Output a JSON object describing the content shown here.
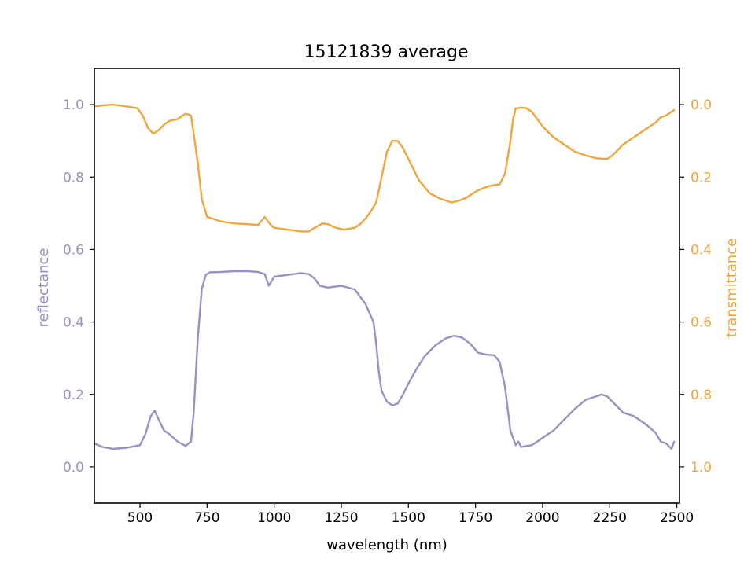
{
  "chart_data": {
    "type": "line",
    "title": "15121839 average",
    "xlabel": "wavelength (nm)",
    "ylabel_left": "reflectance",
    "ylabel_right": "transmittance",
    "xlim": [
      330,
      2510
    ],
    "ylim_left": [
      -0.1,
      1.1
    ],
    "ylim_right": [
      1.1,
      -0.1
    ],
    "right_axis_inverted": true,
    "grid": false,
    "x_ticks": [
      500,
      750,
      1000,
      1250,
      1500,
      1750,
      2000,
      2250,
      2500
    ],
    "x_tick_labels": [
      "500",
      "750",
      "1000",
      "1250",
      "1500",
      "1750",
      "2000",
      "2250",
      "2500"
    ],
    "y_left_ticks": [
      0.0,
      0.2,
      0.4,
      0.6,
      0.8,
      1.0
    ],
    "y_left_tick_labels": [
      "0.0",
      "0.2",
      "0.4",
      "0.6",
      "0.8",
      "1.0"
    ],
    "y_right_ticks": [
      0.0,
      0.2,
      0.4,
      0.6,
      0.8,
      1.0
    ],
    "y_right_tick_labels": [
      "0.0",
      "0.2",
      "0.4",
      "0.6",
      "0.8",
      "1.0"
    ],
    "colors": {
      "reflectance": "#9891c3",
      "transmittance": "#f0a53e"
    },
    "series": [
      {
        "axis": "left",
        "color": "#9891c3",
        "x": [
          330,
          360,
          400,
          450,
          500,
          520,
          540,
          555,
          570,
          590,
          610,
          640,
          670,
          690,
          700,
          715,
          730,
          745,
          760,
          800,
          850,
          900,
          940,
          965,
          980,
          1000,
          1050,
          1100,
          1130,
          1150,
          1170,
          1200,
          1250,
          1300,
          1340,
          1370,
          1380,
          1390,
          1400,
          1420,
          1440,
          1460,
          1480,
          1500,
          1530,
          1560,
          1600,
          1640,
          1670,
          1700,
          1730,
          1760,
          1790,
          1820,
          1840,
          1860,
          1870,
          1880,
          1890,
          1900,
          1910,
          1920,
          1940,
          1960,
          1980,
          2000,
          2040,
          2080,
          2120,
          2160,
          2200,
          2220,
          2240,
          2260,
          2280,
          2300,
          2340,
          2380,
          2420,
          2440,
          2460,
          2480,
          2490
        ],
        "y": [
          0.065,
          0.055,
          0.05,
          0.053,
          0.06,
          0.09,
          0.14,
          0.155,
          0.13,
          0.1,
          0.09,
          0.07,
          0.058,
          0.07,
          0.15,
          0.35,
          0.49,
          0.53,
          0.537,
          0.538,
          0.54,
          0.54,
          0.538,
          0.532,
          0.5,
          0.525,
          0.53,
          0.535,
          0.532,
          0.52,
          0.5,
          0.495,
          0.5,
          0.49,
          0.45,
          0.4,
          0.34,
          0.26,
          0.21,
          0.18,
          0.17,
          0.175,
          0.2,
          0.23,
          0.27,
          0.305,
          0.335,
          0.355,
          0.362,
          0.357,
          0.34,
          0.315,
          0.31,
          0.308,
          0.29,
          0.22,
          0.16,
          0.1,
          0.08,
          0.06,
          0.07,
          0.055,
          0.058,
          0.06,
          0.07,
          0.08,
          0.1,
          0.13,
          0.16,
          0.185,
          0.195,
          0.2,
          0.195,
          0.18,
          0.165,
          0.15,
          0.14,
          0.12,
          0.095,
          0.07,
          0.065,
          0.05,
          0.07
        ]
      },
      {
        "axis": "right",
        "color": "#f0a53e",
        "x": [
          330,
          360,
          400,
          450,
          490,
          510,
          530,
          550,
          570,
          590,
          610,
          640,
          670,
          690,
          700,
          715,
          730,
          750,
          800,
          850,
          900,
          940,
          965,
          975,
          990,
          1000,
          1050,
          1100,
          1130,
          1150,
          1180,
          1200,
          1230,
          1260,
          1300,
          1320,
          1340,
          1360,
          1380,
          1400,
          1420,
          1440,
          1460,
          1480,
          1500,
          1540,
          1580,
          1620,
          1660,
          1690,
          1720,
          1750,
          1780,
          1800,
          1820,
          1840,
          1860,
          1880,
          1890,
          1900,
          1910,
          1920,
          1940,
          1960,
          1980,
          2000,
          2040,
          2080,
          2120,
          2160,
          2200,
          2240,
          2260,
          2280,
          2300,
          2320,
          2340,
          2380,
          2420,
          2440,
          2460,
          2480,
          2490
        ],
        "y": [
          0.005,
          0.002,
          0.0,
          0.005,
          0.01,
          0.03,
          0.065,
          0.08,
          0.07,
          0.055,
          0.045,
          0.04,
          0.025,
          0.03,
          0.08,
          0.16,
          0.26,
          0.31,
          0.322,
          0.328,
          0.33,
          0.332,
          0.31,
          0.32,
          0.335,
          0.34,
          0.345,
          0.35,
          0.35,
          0.34,
          0.328,
          0.33,
          0.34,
          0.345,
          0.34,
          0.33,
          0.315,
          0.295,
          0.27,
          0.2,
          0.13,
          0.1,
          0.1,
          0.12,
          0.15,
          0.21,
          0.245,
          0.26,
          0.27,
          0.265,
          0.255,
          0.24,
          0.23,
          0.225,
          0.222,
          0.22,
          0.19,
          0.1,
          0.04,
          0.01,
          0.01,
          0.008,
          0.01,
          0.02,
          0.04,
          0.06,
          0.09,
          0.11,
          0.13,
          0.14,
          0.148,
          0.15,
          0.14,
          0.125,
          0.11,
          0.1,
          0.09,
          0.07,
          0.05,
          0.035,
          0.03,
          0.02,
          0.015
        ]
      }
    ]
  }
}
